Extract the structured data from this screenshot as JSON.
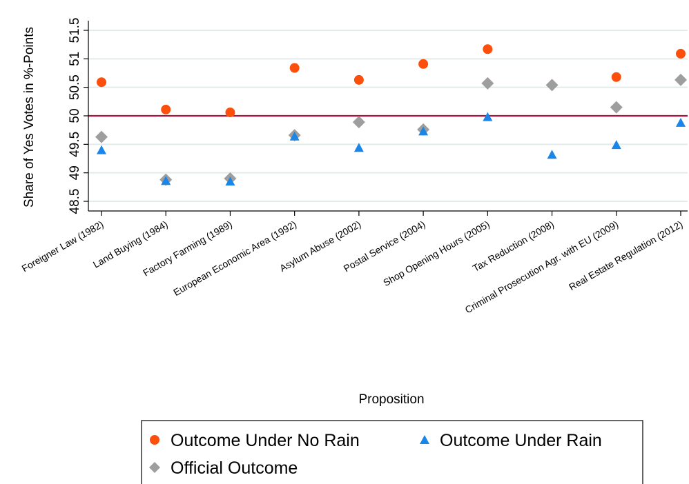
{
  "chart_data": {
    "type": "scatter",
    "xlabel": "Proposition",
    "ylabel": "Share of Yes Votes in %-Points",
    "ylim": [
      48.5,
      51.5
    ],
    "yticks": [
      "48.5",
      "49",
      "49.5",
      "50",
      "50.5",
      "51",
      "51.5"
    ],
    "grid": true,
    "reference_line": 50,
    "categories": [
      "Foreigner Law (1982)",
      "Land Buying (1984)",
      "Factory Farming (1989)",
      "European Economic Area (1992)",
      "Asylum Abuse (2002)",
      "Postal Service (2004)",
      "Shop Opening Hours (2005)",
      "Tax Reduction (2008)",
      "Criminal Prosecution Agr. with EU (2009)",
      "Real Estate Regulation (2012)"
    ],
    "series": [
      {
        "name": "Outcome Under No Rain",
        "marker": "circle",
        "color": "#fc4f0c",
        "values": [
          50.59,
          50.11,
          50.06,
          50.84,
          50.63,
          50.91,
          51.17,
          null,
          50.68,
          51.09
        ]
      },
      {
        "name": "Outcome Under Rain",
        "marker": "triangle",
        "color": "#1a86e8",
        "values": [
          49.4,
          48.86,
          48.85,
          49.64,
          49.44,
          49.73,
          49.98,
          49.32,
          49.49,
          49.88
        ]
      },
      {
        "name": "Official Outcome",
        "marker": "diamond",
        "color": "#9e9e9e",
        "values": [
          49.63,
          48.88,
          48.9,
          49.66,
          49.89,
          49.76,
          50.57,
          50.54,
          50.15,
          50.63
        ]
      }
    ],
    "legend_position": "bottom"
  },
  "colors": {
    "reference_line": "#b0103a",
    "grid": "#e2eaea",
    "axis": "#000000"
  }
}
